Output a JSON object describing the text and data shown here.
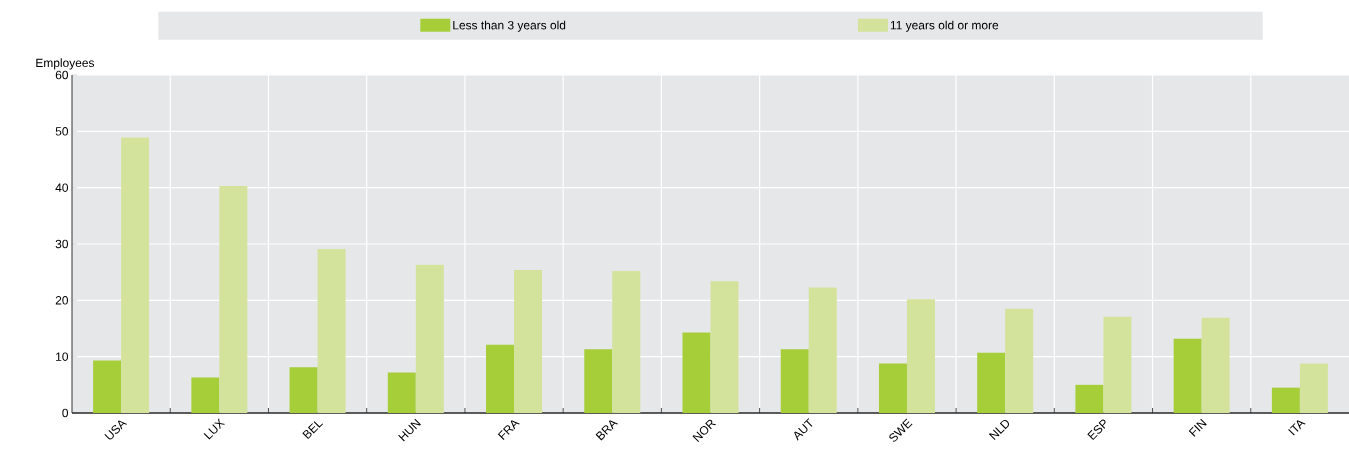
{
  "chart_data": {
    "type": "bar",
    "ylabel": "Employees",
    "categories": [
      "USA",
      "LUX",
      "BEL",
      "HUN",
      "FRA",
      "BRA",
      "NOR",
      "AUT",
      "SWE",
      "NLD",
      "ESP",
      "FIN",
      "ITA"
    ],
    "series": [
      {
        "name": "Less than 3 years old",
        "color": "#a6ce39",
        "values": [
          9.3,
          6.3,
          8.1,
          7.2,
          12.1,
          11.3,
          14.3,
          11.3,
          8.8,
          10.7,
          5.0,
          13.2,
          4.5
        ]
      },
      {
        "name": "11 years old or more",
        "color": "#d3e39b",
        "values": [
          48.9,
          40.3,
          29.1,
          26.3,
          25.4,
          25.2,
          23.4,
          22.3,
          20.2,
          18.5,
          17.1,
          16.9,
          8.8
        ]
      }
    ],
    "ylim": [
      0,
      60
    ],
    "yticks": [
      0,
      10,
      20,
      30,
      40,
      50,
      60
    ],
    "grid": true,
    "legend": "top"
  }
}
